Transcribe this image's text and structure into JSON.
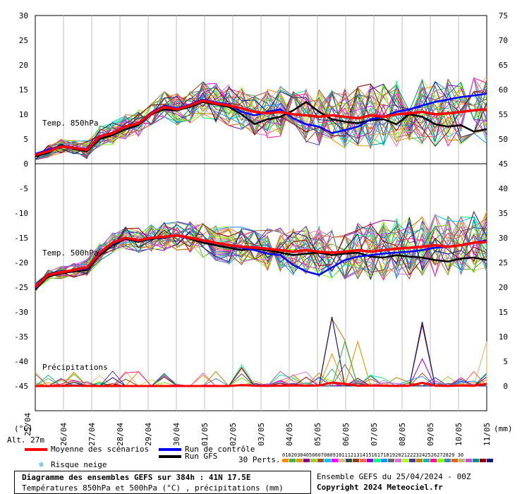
{
  "chart_data": {
    "type": "line",
    "x_dates": [
      "26/04",
      "27/04",
      "28/04",
      "29/04",
      "30/04",
      "01/05",
      "02/05",
      "03/05",
      "04/05",
      "05/05",
      "06/05",
      "07/05",
      "08/05",
      "09/05",
      "10/05",
      "11/05"
    ],
    "x_first_date_partial": "25/04",
    "left_axis": {
      "ticks": [
        30,
        25,
        20,
        15,
        10,
        5,
        0,
        -5,
        -10,
        -15,
        -20,
        -25,
        -30,
        -35,
        -40,
        -45
      ],
      "unit": "(°C)"
    },
    "right_axis": {
      "ticks": [
        75,
        70,
        65,
        60,
        55,
        50,
        45,
        40,
        35,
        30,
        25,
        20,
        15,
        10,
        5,
        0
      ],
      "unit": "(mm)"
    },
    "annotations": {
      "t850": "Temp. 850hPa",
      "t500": "Temp. 500hPa",
      "precip": "Précipitations",
      "alt": "Alt. 27m"
    },
    "mean_850": [
      1.8,
      2.5,
      3.5,
      3.2,
      2.8,
      5.5,
      6.2,
      7.5,
      8.2,
      10.2,
      11.5,
      11.0,
      11.8,
      12.8,
      12.2,
      11.8,
      11.2,
      10.5,
      10.2,
      10.5,
      10.0,
      9.8,
      9.5,
      9.8,
      9.5,
      9.2,
      9.8,
      9.5,
      10.0,
      10.2,
      10.5,
      10.0,
      10.2,
      10.5,
      10.8,
      11.0
    ],
    "gfs_850": [
      1.5,
      2.2,
      3.8,
      3.0,
      2.5,
      5.0,
      5.8,
      7.0,
      7.8,
      10.0,
      11.0,
      10.8,
      11.5,
      12.5,
      12.0,
      11.5,
      10.0,
      8.0,
      9.0,
      9.5,
      10.8,
      12.5,
      10.5,
      9.0,
      8.5,
      8.2,
      8.8,
      9.0,
      8.0,
      10.0,
      9.5,
      8.0,
      7.5,
      7.8,
      6.5,
      7.0
    ],
    "ctrl_850": [
      2.0,
      2.8,
      3.6,
      3.3,
      2.9,
      5.6,
      6.3,
      7.6,
      8.3,
      10.4,
      11.7,
      11.2,
      12.0,
      13.0,
      12.4,
      12.0,
      10.5,
      9.8,
      10.5,
      11.0,
      9.2,
      8.0,
      7.5,
      6.2,
      6.8,
      7.5,
      9.0,
      9.5,
      10.5,
      11.0,
      11.8,
      12.5,
      13.0,
      13.5,
      13.8,
      14.2
    ],
    "mean_500": [
      -25.0,
      -22.5,
      -22.0,
      -21.5,
      -21.0,
      -18.0,
      -16.0,
      -15.0,
      -15.5,
      -15.0,
      -14.8,
      -14.5,
      -15.0,
      -15.5,
      -16.0,
      -16.5,
      -16.8,
      -17.0,
      -17.2,
      -17.5,
      -17.8,
      -17.5,
      -17.8,
      -18.0,
      -17.8,
      -17.5,
      -17.8,
      -17.5,
      -17.2,
      -17.0,
      -16.8,
      -16.5,
      -16.8,
      -16.5,
      -16.0,
      -15.8
    ],
    "gfs_500": [
      -25.5,
      -22.8,
      -22.2,
      -21.8,
      -21.5,
      -18.5,
      -16.5,
      -15.2,
      -15.8,
      -15.2,
      -15.0,
      -14.5,
      -15.2,
      -16.0,
      -16.5,
      -17.0,
      -17.5,
      -17.2,
      -17.5,
      -18.0,
      -18.5,
      -18.2,
      -18.0,
      -18.5,
      -18.2,
      -18.0,
      -18.8,
      -19.0,
      -18.5,
      -18.8,
      -19.0,
      -19.5,
      -19.8,
      -19.2,
      -19.0,
      -19.5
    ],
    "ctrl_500": [
      -25.2,
      -22.4,
      -22.1,
      -21.6,
      -21.2,
      -18.2,
      -16.2,
      -15.1,
      -15.6,
      -15.1,
      -14.9,
      -14.6,
      -15.1,
      -15.6,
      -16.1,
      -16.6,
      -17.0,
      -17.5,
      -18.2,
      -18.5,
      -20.5,
      -21.8,
      -22.5,
      -21.0,
      -19.5,
      -18.8,
      -18.5,
      -18.2,
      -18.0,
      -17.8,
      -17.5,
      -17.0,
      -16.8,
      -16.5,
      -16.0,
      -15.5
    ],
    "precip_spikes_mm": [
      0,
      0,
      0.5,
      1.0,
      0.5,
      0,
      0,
      0,
      0,
      0,
      0,
      0,
      0,
      0,
      0,
      0,
      4,
      1,
      0.5,
      1,
      2,
      1,
      2,
      14,
      9,
      1,
      2,
      1,
      0.5,
      1,
      13,
      1,
      0.5,
      2,
      1,
      9
    ],
    "title": "Diagramme des ensembles GEFS sur 384h : 41N 17.5E",
    "subtitle": "Températures 850hPa et 500hPa (°C) , précipitations (mm)"
  },
  "legend": {
    "mean": "Moyenne des scénarios",
    "control": "Run de contrôle",
    "gfs": "Run GFS",
    "snow": "Risque neige",
    "perts_label": "30 Perts.",
    "pert_numbers": "0102030405060708091011121314151617181920212223242526272829 30"
  },
  "colors": {
    "mean": "#ff0000",
    "control": "#0000ff",
    "gfs": "#000000",
    "grid": "#c0c0c0",
    "perts": [
      "#ff8c00",
      "#4caf50",
      "#d4a017",
      "#8b008b",
      "#9acd32",
      "#a0522d",
      "#00bfff",
      "#ff00ff",
      "#deb887",
      "#2f4f4f",
      "#8b4513",
      "#ff6347",
      "#9400d3",
      "#00ff7f",
      "#1e90ff",
      "#696969",
      "#da70d6",
      "#adff2f",
      "#483d8b",
      "#b8860b",
      "#20b2aa",
      "#ff1493",
      "#7fff00",
      "#4682b4",
      "#d2691e",
      "#bdb76b",
      "#ba55d3",
      "#008b8b",
      "#8b0000",
      "#191970"
    ]
  },
  "footer": {
    "ensemble_run": "Ensemble GEFS du 25/04/2024 - 00Z",
    "copyright": "Copyright 2024 Meteociel.fr"
  }
}
